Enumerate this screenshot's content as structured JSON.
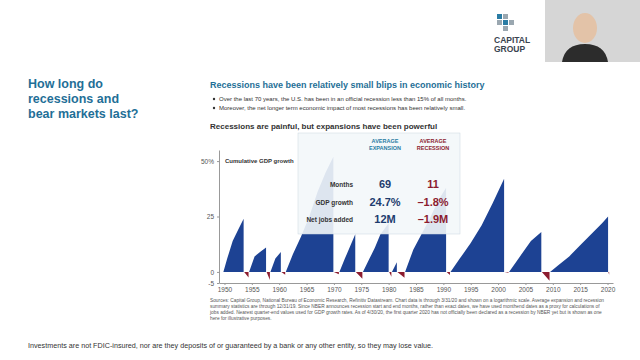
{
  "chart_data": {
    "type": "area",
    "title": "Recessions have been relatively small blips in economic history",
    "subtitle": "Recessions are painful, but expansions have been powerful",
    "ylabel": "Cumulative GDP growth",
    "x": [
      1949.8,
      1950.5,
      1951.5,
      1952.5,
      1953.5,
      1953.6,
      1954.4,
      1954.5,
      1955.5,
      1956.5,
      1957.6,
      1957.7,
      1958.3,
      1958.4,
      1959.3,
      1960.3,
      1960.4,
      1961.1,
      1961.2,
      1962.5,
      1964,
      1965.5,
      1967,
      1968.5,
      1969.9,
      1970,
      1970.9,
      1971,
      1972,
      1973.9,
      1974,
      1975.2,
      1975.3,
      1976.5,
      1977.5,
      1978.5,
      1980,
      1980.1,
      1980.5,
      1980.6,
      1981.5,
      1981.6,
      1982.9,
      1983,
      1984.5,
      1986,
      1987.5,
      1989,
      1990.5,
      1990.6,
      1991.2,
      1991.3,
      1993,
      1995,
      1997,
      1999,
      2001.1,
      2001.2,
      2001.9,
      2002,
      2004,
      2006,
      2007.9,
      2008,
      2009.4,
      2009.5,
      2011,
      2013,
      2015,
      2017,
      2019,
      2020.1,
      2020.15,
      2020.3
    ],
    "series": [
      {
        "color": "#1d4293",
        "values": [
          0,
          6,
          14,
          19,
          24,
          null,
          null,
          0,
          7,
          9,
          11,
          null,
          null,
          0,
          6,
          9,
          null,
          null,
          0,
          8,
          16,
          25,
          36,
          45,
          52,
          null,
          null,
          0,
          6,
          17,
          null,
          null,
          0,
          6,
          11,
          17,
          22,
          null,
          null,
          0,
          4.4,
          null,
          null,
          0,
          10,
          17,
          24,
          32,
          38,
          null,
          null,
          0,
          6,
          13,
          21,
          31,
          42,
          null,
          null,
          0,
          7,
          14,
          18,
          null,
          null,
          0,
          3,
          7,
          12,
          17,
          22,
          25,
          null,
          null
        ]
      },
      {
        "color": "#8c1c2f",
        "values": [
          null,
          null,
          null,
          null,
          null,
          0,
          -2.5,
          null,
          null,
          null,
          null,
          0,
          -3.6,
          null,
          null,
          null,
          0,
          -1.3,
          null,
          null,
          null,
          null,
          null,
          null,
          null,
          0,
          -1.1,
          null,
          null,
          null,
          0,
          -3.1,
          null,
          null,
          null,
          null,
          null,
          0,
          -2.2,
          null,
          null,
          0,
          -2.6,
          null,
          null,
          null,
          null,
          null,
          null,
          0,
          -1.4,
          null,
          null,
          null,
          null,
          null,
          null,
          0,
          -0.4,
          null,
          null,
          null,
          null,
          0,
          -4,
          null,
          null,
          null,
          null,
          null,
          null,
          null,
          0,
          -1.3
        ]
      }
    ],
    "xlim": [
      1949,
      2021
    ],
    "xticks": [
      1950,
      1955,
      1960,
      1965,
      1970,
      1975,
      1980,
      1985,
      1990,
      1995,
      2000,
      2005,
      2010,
      2015,
      2020
    ],
    "ylim": [
      -5,
      55
    ],
    "yticks": [
      -5,
      0,
      25,
      {
        "value": 50,
        "label": "50%"
      }
    ],
    "grid": false
  },
  "slide": {
    "heading": "How long do recessions and bear markets last?",
    "bullets": [
      "Over the last 70 years, the U.S. has been in an official recession less than 15% of all months.",
      "Moreover, the net longer term economic impact of most recessions has been relatively small."
    ],
    "inset_table": {
      "columns": [
        "AVERAGE EXPANSION",
        "AVERAGE RECESSION"
      ],
      "rows": [
        {
          "label": "Months",
          "values": [
            "69",
            "11"
          ]
        },
        {
          "label": "GDP growth",
          "values": [
            "24.7%",
            "–1.8%"
          ]
        },
        {
          "label": "Net jobs added",
          "values": [
            "12M",
            "–1.9M"
          ]
        }
      ]
    },
    "sources": "Sources: Capital Group, National Bureau of Economic Research, Refinitiv Datastream. Chart data is through 3/31/20 and shown on a logarithmic scale. Average expansion and recession summary statistics are through 12/31/19. Since NBER announces recession start and end months, rather than exact dates, we have used monthend dates as a proxy for calculations of jobs added. Nearest quarter-end values used for GDP growth rates. As of 4/30/20, the first quarter 2020 has not officially been declared as a recession by NBER yet but is shown as one here for illustrative purposes.",
    "disclaimer": "Investments are not FDIC-insured, nor are they deposits of or guaranteed by a bank or any other entity, so they may lose value.",
    "logo": "CAPITAL GROUP"
  }
}
